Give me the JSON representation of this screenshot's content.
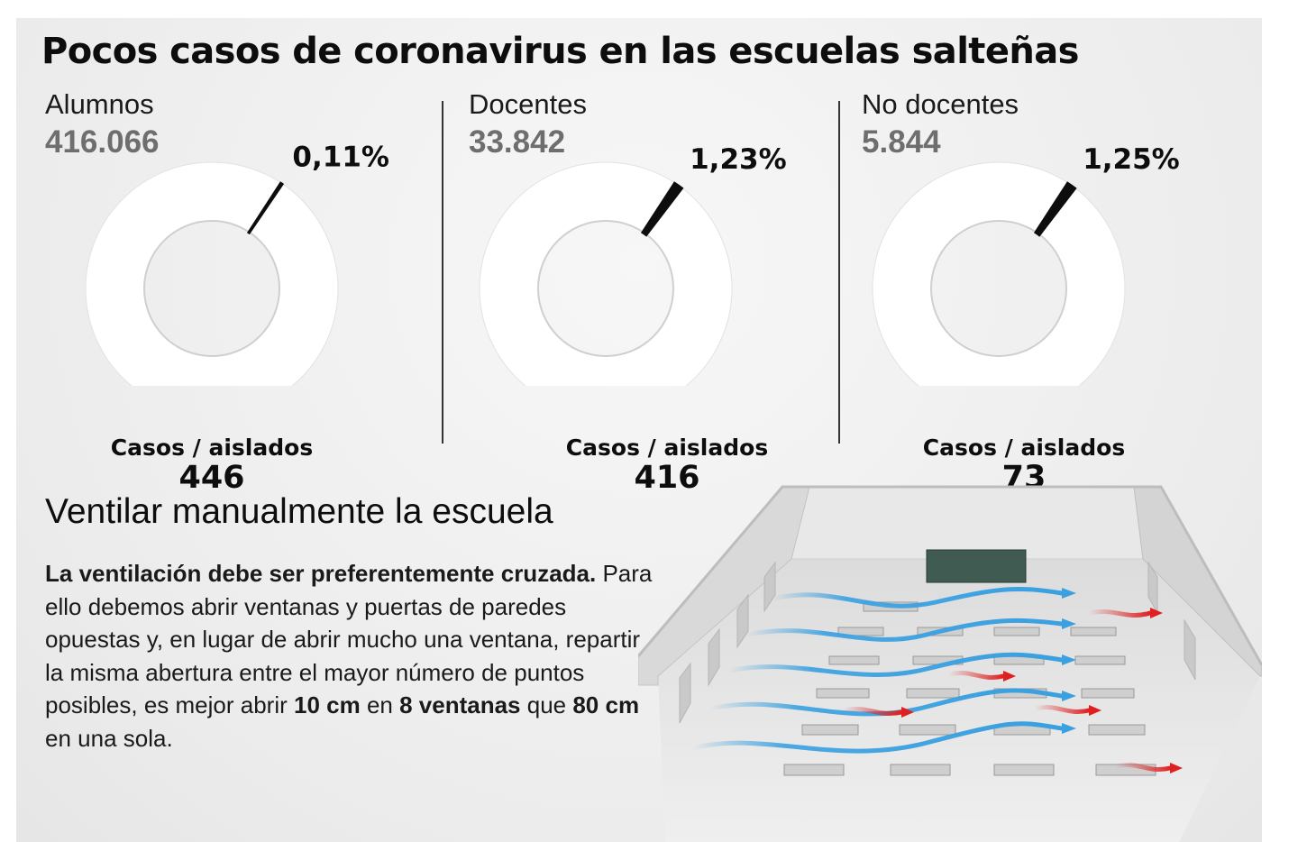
{
  "title": "Pocos casos de coronavirus en las escuelas salteñas",
  "chart_data": [
    {
      "type": "pie",
      "title": "Alumnos",
      "total": "416.066",
      "percent_label": "0,11%",
      "percent": 0.11,
      "caption": "Casos / aislados",
      "cases": "446"
    },
    {
      "type": "pie",
      "title": "Docentes",
      "total": "33.842",
      "percent_label": "1,23%",
      "percent": 1.23,
      "caption": "Casos / aislados",
      "cases": "416"
    },
    {
      "type": "pie",
      "title": "No docentes",
      "total": "5.844",
      "percent_label": "1,25%",
      "percent": 1.25,
      "caption": "Casos / aislados",
      "cases": "73"
    }
  ],
  "ventilation": {
    "title": "Ventilar manualmente la escuela",
    "segments": [
      {
        "text": "La ventilación debe ser preferentemente cruzada.",
        "bold": true
      },
      {
        "text": " Para ello debemos abrir ventanas y puertas de paredes opuestas y, en lugar de abrir mucho una ventana, repartir la misma abertura entre el mayor número de puntos posibles, es mejor abrir ",
        "bold": false
      },
      {
        "text": "10 cm",
        "bold": true
      },
      {
        "text": " en ",
        "bold": false
      },
      {
        "text": "8 ventanas",
        "bold": true
      },
      {
        "text": " que ",
        "bold": false
      },
      {
        "text": "80 cm",
        "bold": true
      },
      {
        "text": " en una sola.",
        "bold": false
      }
    ]
  },
  "colors": {
    "ring": "#ffffff",
    "wedge": "#0d0d0d",
    "total_text": "#6e6e6e",
    "cold_air": "#3aa0e0",
    "warm_air": "#e02020"
  }
}
